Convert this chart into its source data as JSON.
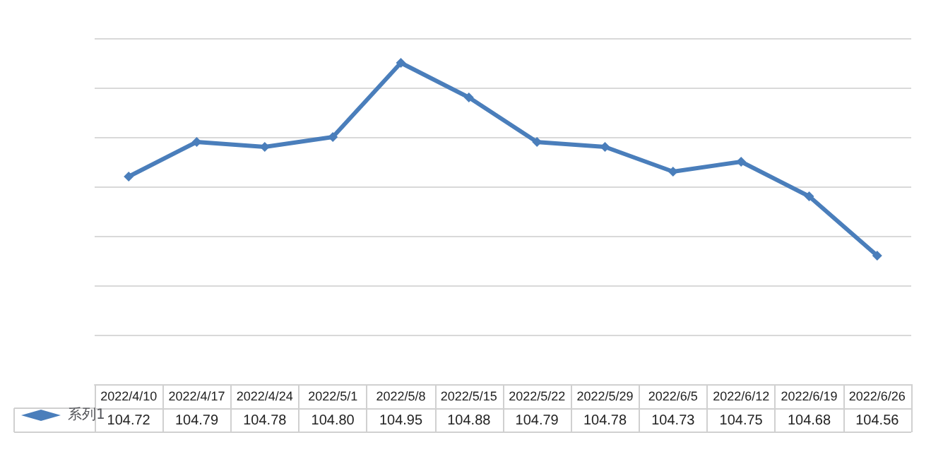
{
  "chart_data": {
    "type": "line",
    "categories": [
      "2022/4/10",
      "2022/4/17",
      "2022/4/24",
      "2022/5/1",
      "2022/5/8",
      "2022/5/15",
      "2022/5/22",
      "2022/5/29",
      "2022/6/5",
      "2022/6/12",
      "2022/6/19",
      "2022/6/26"
    ],
    "series": [
      {
        "name": "系列1",
        "color": "#4a7ebb",
        "values": [
          104.72,
          104.79,
          104.78,
          104.8,
          104.95,
          104.88,
          104.79,
          104.78,
          104.73,
          104.75,
          104.68,
          104.56
        ],
        "value_labels": [
          "104.72",
          "104.79",
          "104.78",
          "104.80",
          "104.95",
          "104.88",
          "104.79",
          "104.78",
          "104.73",
          "104.75",
          "104.68",
          "104.56"
        ]
      }
    ],
    "ylim": [
      104.3,
      105.0
    ],
    "yticks": [
      {
        "value": 104.3,
        "label": null
      },
      {
        "value": 104.4,
        "label": null
      },
      {
        "value": 104.5,
        "label": null
      },
      {
        "value": 104.6,
        "label": null
      },
      {
        "value": 104.7,
        "label": null
      },
      {
        "value": 104.8,
        "label": null
      },
      {
        "value": 104.9,
        "label": null
      },
      {
        "value": 105.0,
        "label": null
      }
    ],
    "tick_labels": "x",
    "grid": "y",
    "legend": "bottom left",
    "marker": "diamond",
    "line_style": "solid"
  }
}
